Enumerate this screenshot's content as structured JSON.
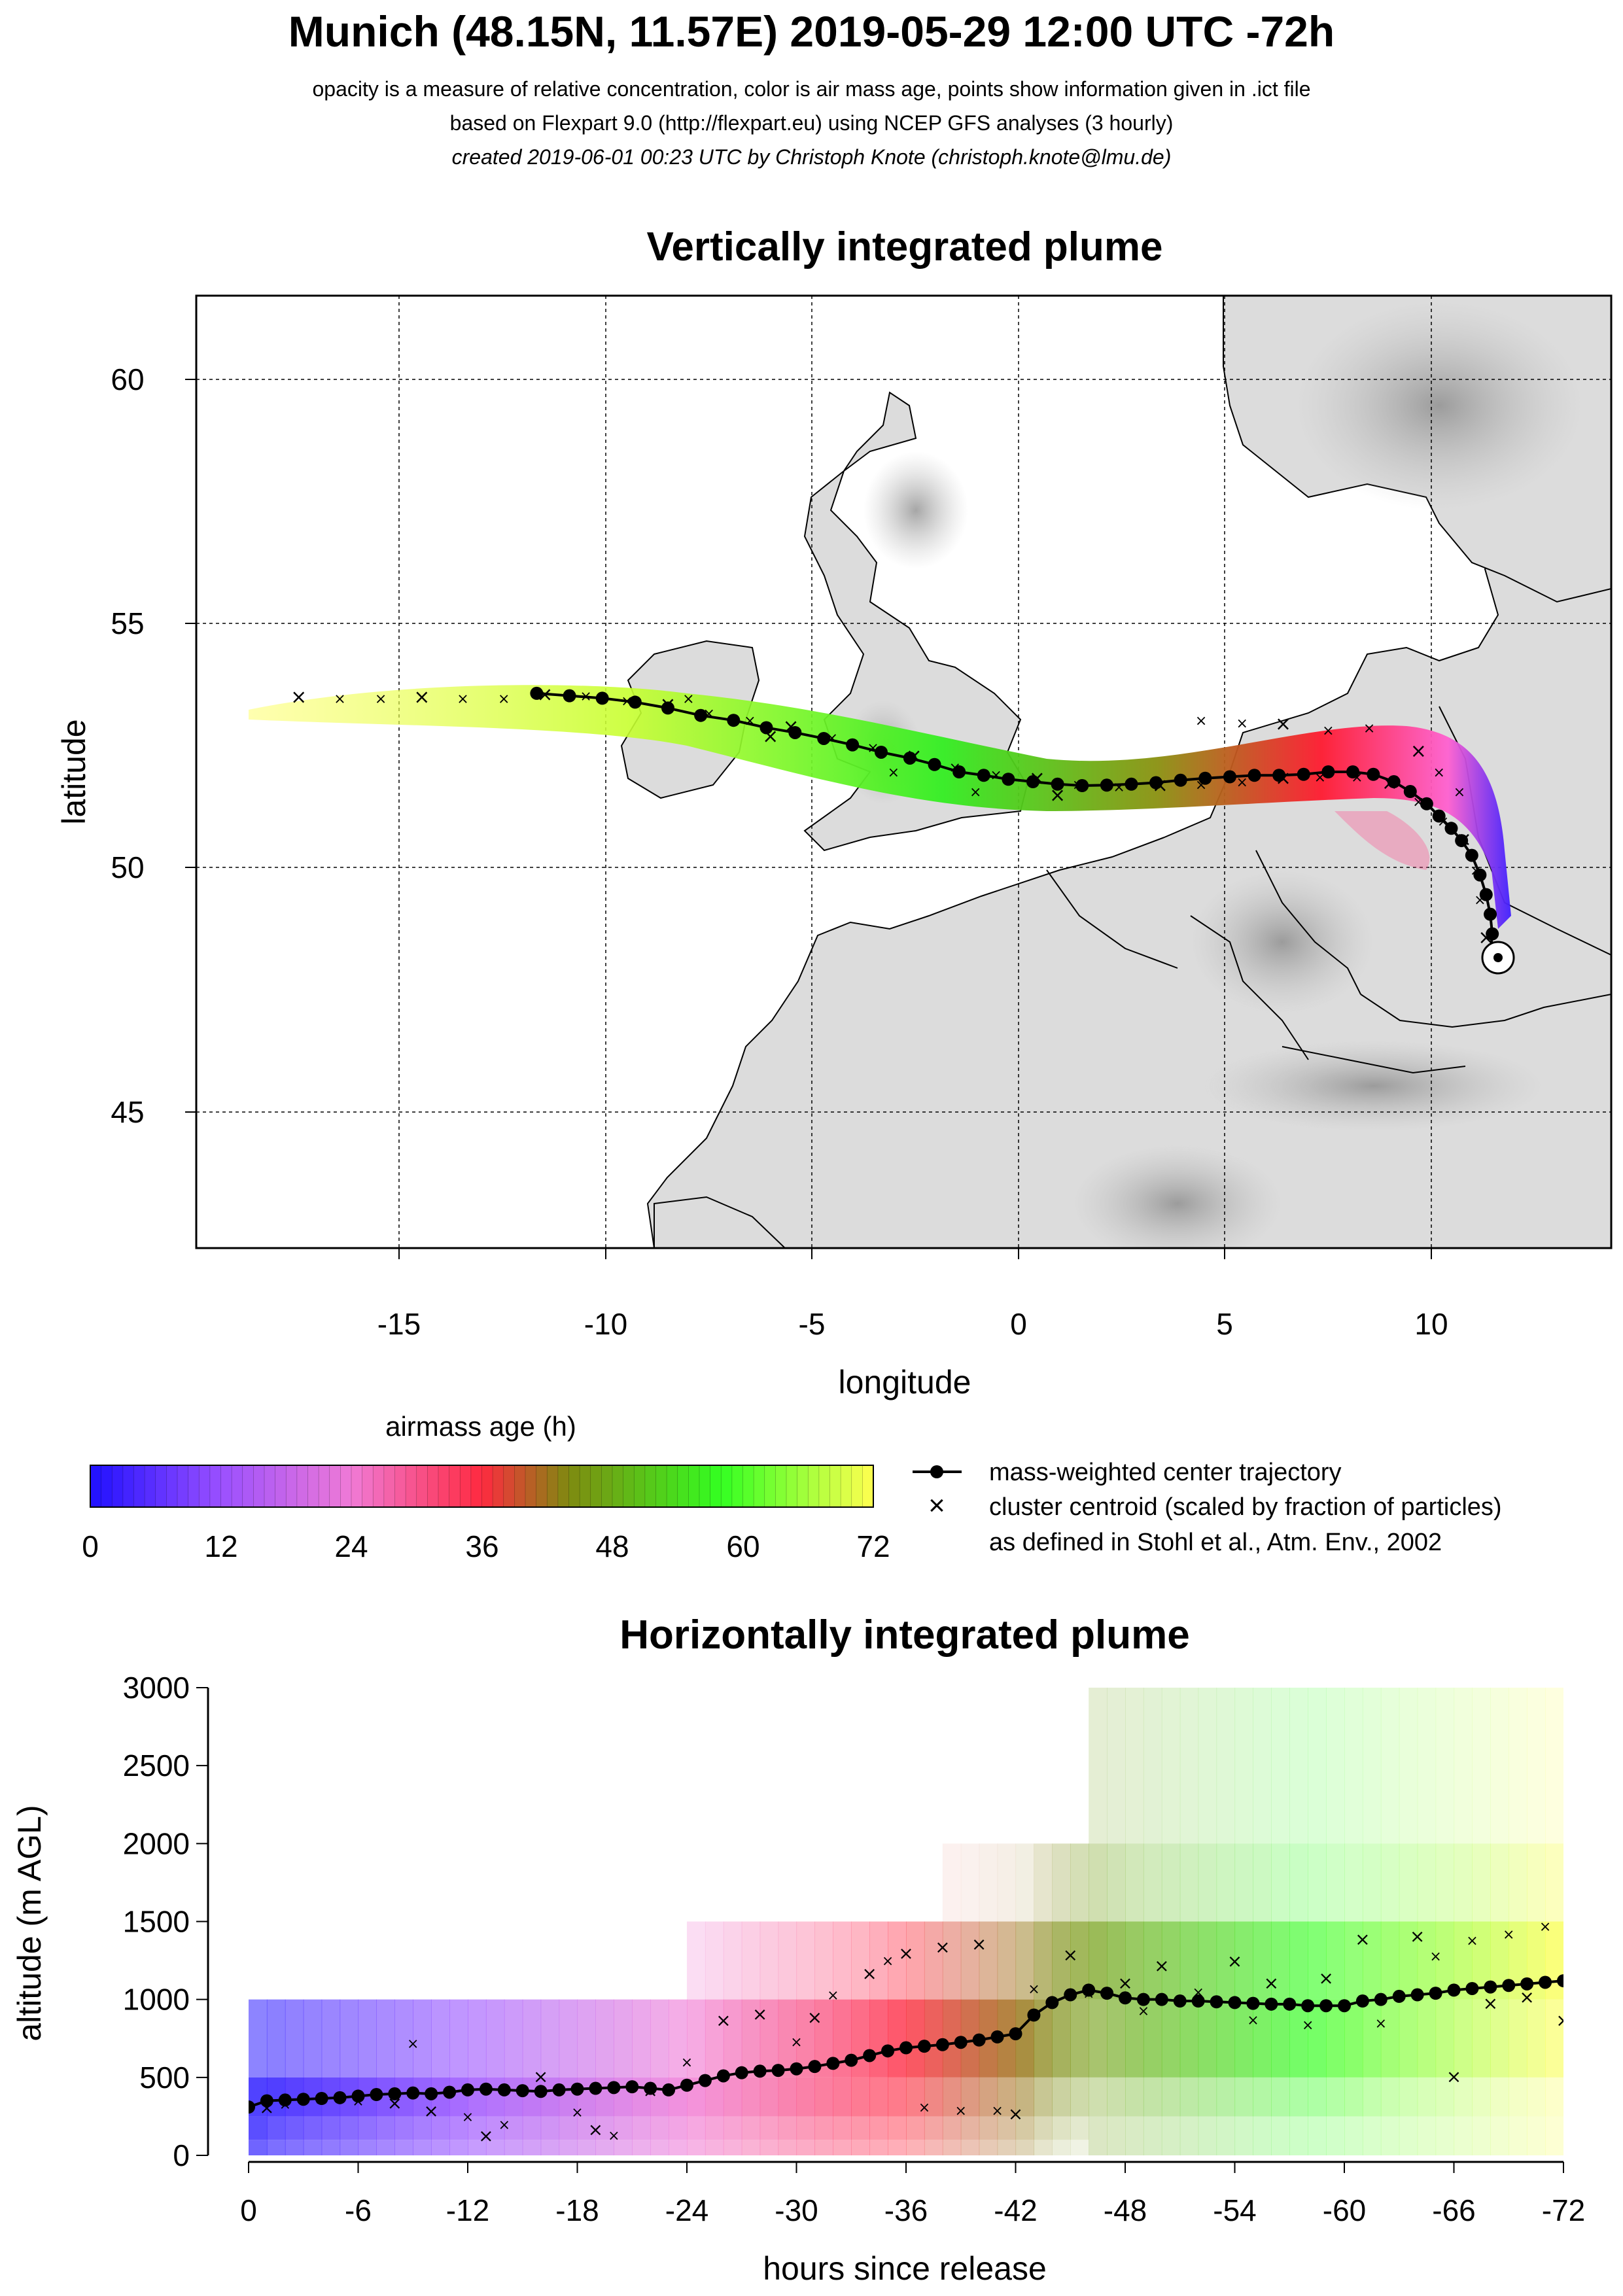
{
  "header": {
    "title": "Munich (48.15N, 11.57E) 2019-05-29 12:00 UTC -72h",
    "line1": "opacity is a measure of relative concentration, color is air mass age, points show information given in .ict file",
    "line2": "based on Flexpart 9.0 (http://flexpart.eu) using NCEP GFS analyses (3 hourly)",
    "line3": "created 2019-06-01 00:23 UTC by Christoph Knote (christoph.knote@lmu.de)"
  },
  "legend": {
    "colorbar_title": "airmass age (h)",
    "colorbar_ticks": [
      "0",
      "12",
      "24",
      "36",
      "48",
      "60",
      "72"
    ],
    "trajectory_label": "mass-weighted center trajectory",
    "cluster_label_1": "cluster centroid (scaled by fraction of particles)",
    "cluster_label_2": "as defined in Stohl et al., Atm. Env., 2002"
  },
  "colors": {
    "age_scale": [
      "#1f10ff",
      "#9a50ff",
      "#f07ad6",
      "#ff2a40",
      "#7f8a10",
      "#33ff22",
      "#ffff50"
    ],
    "land": "#dcdcdc",
    "terrain_dark": "#8a8a8a"
  },
  "chart_data": [
    {
      "type": "scatter",
      "title": "Vertically integrated plume",
      "xlabel": "longitude",
      "ylabel": "latitude",
      "xlim": [
        -20,
        14.5
      ],
      "ylim": [
        42.3,
        61.7
      ],
      "xticks": [
        "-15",
        "-10",
        "-5",
        "0",
        "5",
        "10"
      ],
      "yticks": [
        "45",
        "50",
        "55",
        "60"
      ],
      "grid": true,
      "release_point": {
        "lon": 11.57,
        "lat": 48.15
      },
      "series": [
        {
          "name": "mass-weighted center trajectory",
          "points": [
            [
              11.55,
              48.3
            ],
            [
              11.6,
              48.7
            ],
            [
              11.55,
              49.1
            ],
            [
              11.45,
              49.5
            ],
            [
              11.3,
              49.9
            ],
            [
              11.1,
              50.3
            ],
            [
              10.85,
              50.6
            ],
            [
              10.6,
              50.85
            ],
            [
              10.3,
              51.1
            ],
            [
              10.0,
              51.35
            ],
            [
              9.6,
              51.6
            ],
            [
              9.2,
              51.8
            ],
            [
              8.7,
              51.95
            ],
            [
              8.2,
              52.0
            ],
            [
              7.6,
              52.0
            ],
            [
              7.0,
              51.95
            ],
            [
              6.4,
              51.93
            ],
            [
              5.8,
              51.93
            ],
            [
              5.2,
              51.9
            ],
            [
              4.6,
              51.87
            ],
            [
              4.0,
              51.83
            ],
            [
              3.4,
              51.78
            ],
            [
              2.8,
              51.75
            ],
            [
              2.2,
              51.73
            ],
            [
              1.6,
              51.72
            ],
            [
              1.0,
              51.75
            ],
            [
              0.4,
              51.8
            ],
            [
              -0.2,
              51.85
            ],
            [
              -0.8,
              51.93
            ],
            [
              -1.4,
              52.0
            ],
            [
              -2.0,
              52.15
            ],
            [
              -2.6,
              52.28
            ],
            [
              -3.3,
              52.4
            ],
            [
              -4.0,
              52.55
            ],
            [
              -4.7,
              52.68
            ],
            [
              -5.4,
              52.8
            ],
            [
              -6.1,
              52.9
            ],
            [
              -6.9,
              53.05
            ],
            [
              -7.7,
              53.15
            ],
            [
              -8.5,
              53.3
            ],
            [
              -9.3,
              53.42
            ],
            [
              -10.1,
              53.5
            ],
            [
              -10.9,
              53.55
            ],
            [
              -11.7,
              53.6
            ]
          ]
        }
      ],
      "cluster_centroids": [
        [
          11.45,
          48.6
        ],
        [
          11.3,
          49.4
        ],
        [
          11.2,
          50.0
        ],
        [
          10.9,
          50.6
        ],
        [
          10.4,
          51.0
        ],
        [
          9.8,
          51.4
        ],
        [
          9.1,
          51.75
        ],
        [
          8.3,
          51.9
        ],
        [
          7.4,
          51.9
        ],
        [
          6.5,
          51.85
        ],
        [
          5.5,
          51.8
        ],
        [
          4.5,
          51.75
        ],
        [
          3.5,
          51.7
        ],
        [
          2.5,
          51.7
        ],
        [
          1.5,
          51.75
        ],
        [
          0.5,
          51.85
        ],
        [
          -0.5,
          51.95
        ],
        [
          -1.5,
          52.1
        ],
        [
          -2.5,
          52.3
        ],
        [
          -3.5,
          52.5
        ],
        [
          -4.5,
          52.7
        ],
        [
          -5.5,
          52.9
        ],
        [
          -6.5,
          53.05
        ],
        [
          -7.5,
          53.2
        ],
        [
          -8.5,
          53.35
        ],
        [
          -9.5,
          53.45
        ],
        [
          -10.5,
          53.55
        ],
        [
          -11.5,
          53.55
        ],
        [
          -12.5,
          53.5
        ],
        [
          -13.5,
          53.5
        ],
        [
          -14.5,
          53.5
        ],
        [
          -15.5,
          53.5
        ],
        [
          -16.5,
          53.5
        ],
        [
          -17.5,
          53.5
        ],
        [
          8.6,
          52.9
        ],
        [
          7.6,
          52.85
        ],
        [
          6.5,
          52.95
        ],
        [
          5.5,
          53.0
        ],
        [
          4.5,
          53.05
        ],
        [
          9.8,
          52.4
        ],
        [
          10.3,
          52.0
        ],
        [
          10.8,
          51.6
        ],
        [
          1.0,
          51.5
        ],
        [
          -1.0,
          51.6
        ],
        [
          -3.0,
          52.0
        ],
        [
          -6.0,
          52.7
        ],
        [
          -8.0,
          53.5
        ]
      ]
    },
    {
      "type": "scatter",
      "title": "Horizontally integrated plume",
      "xlabel": "hours since release",
      "ylabel": "altitude (m AGL)",
      "xlim": [
        0,
        -72
      ],
      "ylim": [
        0,
        3000
      ],
      "xticks": [
        "0",
        "-6",
        "-12",
        "-18",
        "-24",
        "-30",
        "-36",
        "-42",
        "-48",
        "-54",
        "-60",
        "-66",
        "-72"
      ],
      "yticks": [
        "0",
        "500",
        "1000",
        "1500",
        "2000",
        "2500",
        "3000"
      ],
      "grid": false,
      "series": [
        {
          "name": "mass-weighted center trajectory",
          "x": [
            0,
            -1,
            -2,
            -3,
            -4,
            -5,
            -6,
            -7,
            -8,
            -9,
            -10,
            -11,
            -12,
            -13,
            -14,
            -15,
            -16,
            -17,
            -18,
            -19,
            -20,
            -21,
            -22,
            -23,
            -24,
            -25,
            -26,
            -27,
            -28,
            -29,
            -30,
            -31,
            -32,
            -33,
            -34,
            -35,
            -36,
            -37,
            -38,
            -39,
            -40,
            -41,
            -42,
            -43,
            -44,
            -45,
            -46,
            -47,
            -48,
            -49,
            -50,
            -51,
            -52,
            -53,
            -54,
            -55,
            -56,
            -57,
            -58,
            -59,
            -60,
            -61,
            -62,
            -63,
            -64,
            -65,
            -66,
            -67,
            -68,
            -69,
            -70,
            -71,
            -72
          ],
          "y": [
            310,
            350,
            355,
            360,
            365,
            370,
            380,
            390,
            395,
            400,
            395,
            405,
            420,
            425,
            420,
            415,
            410,
            420,
            425,
            430,
            435,
            440,
            430,
            420,
            450,
            480,
            510,
            530,
            540,
            545,
            555,
            570,
            590,
            610,
            640,
            670,
            690,
            700,
            710,
            725,
            740,
            760,
            780,
            900,
            980,
            1030,
            1060,
            1040,
            1010,
            1000,
            1000,
            990,
            990,
            985,
            980,
            975,
            970,
            970,
            960,
            960,
            960,
            990,
            1000,
            1020,
            1030,
            1040,
            1060,
            1070,
            1080,
            1090,
            1100,
            1110,
            1120
          ]
        }
      ],
      "cluster_centroids": [
        [
          -1,
          300
        ],
        [
          -2,
          330
        ],
        [
          -4,
          360
        ],
        [
          -6,
          350
        ],
        [
          -8,
          330
        ],
        [
          -9,
          720
        ],
        [
          -10,
          280
        ],
        [
          -12,
          250
        ],
        [
          -13,
          120
        ],
        [
          -14,
          200
        ],
        [
          -16,
          500
        ],
        [
          -18,
          280
        ],
        [
          -19,
          160
        ],
        [
          -20,
          130
        ],
        [
          -22,
          410
        ],
        [
          -24,
          600
        ],
        [
          -26,
          860
        ],
        [
          -27,
          530
        ],
        [
          -28,
          900
        ],
        [
          -30,
          730
        ],
        [
          -31,
          880
        ],
        [
          -32,
          1030
        ],
        [
          -34,
          1160
        ],
        [
          -35,
          1250
        ],
        [
          -36,
          1290
        ],
        [
          -37,
          310
        ],
        [
          -38,
          1330
        ],
        [
          -39,
          290
        ],
        [
          -40,
          1350
        ],
        [
          -41,
          290
        ],
        [
          -42,
          260
        ],
        [
          -43,
          1070
        ],
        [
          -45,
          1280
        ],
        [
          -46,
          1040
        ],
        [
          -48,
          1100
        ],
        [
          -49,
          930
        ],
        [
          -50,
          1210
        ],
        [
          -52,
          1050
        ],
        [
          -54,
          1240
        ],
        [
          -55,
          870
        ],
        [
          -56,
          1100
        ],
        [
          -58,
          840
        ],
        [
          -59,
          1130
        ],
        [
          -60,
          960
        ],
        [
          -61,
          1380
        ],
        [
          -62,
          850
        ],
        [
          -64,
          1400
        ],
        [
          -65,
          1280
        ],
        [
          -66,
          500
        ],
        [
          -67,
          1380
        ],
        [
          -68,
          970
        ],
        [
          -69,
          1420
        ],
        [
          -70,
          1010
        ],
        [
          -71,
          1470
        ],
        [
          -72,
          860
        ]
      ]
    }
  ]
}
